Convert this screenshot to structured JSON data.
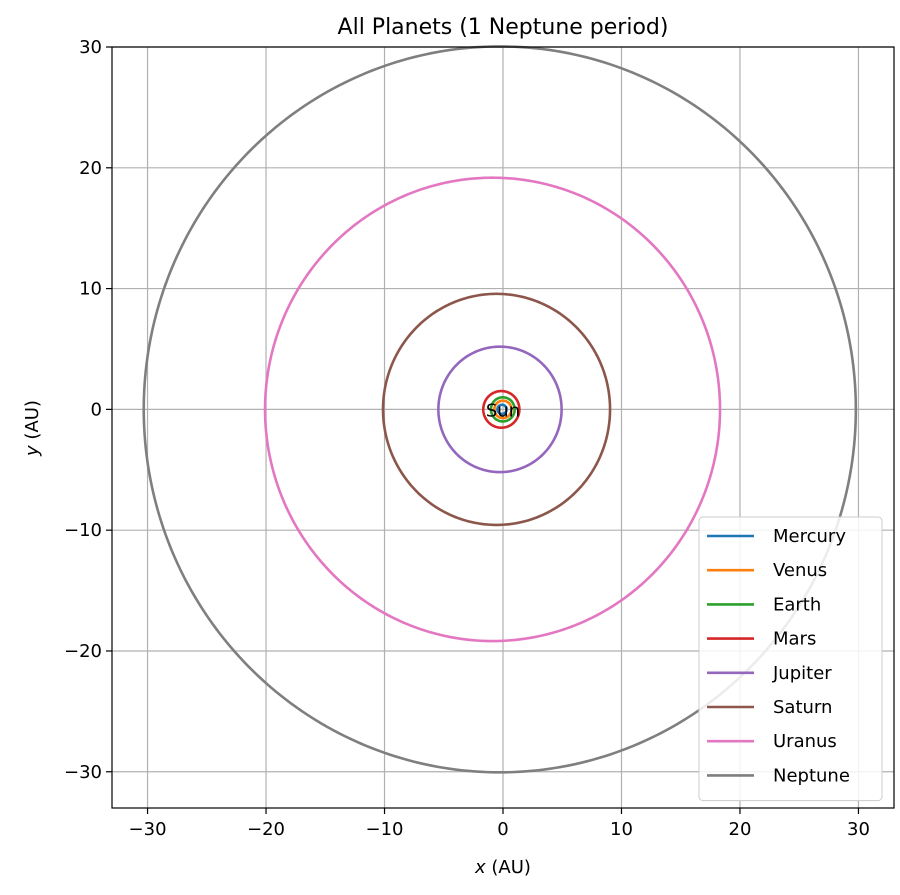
{
  "chart_data": {
    "type": "line",
    "title": "All Planets (1 Neptune period)",
    "xlabel_var": "x",
    "xlabel_unit": " (AU)",
    "ylabel_var": "y",
    "ylabel_unit": " (AU)",
    "xlim": [
      -33,
      33
    ],
    "ylim": [
      -33,
      30
    ],
    "xticks": [
      -30,
      -20,
      -10,
      0,
      10,
      20,
      30
    ],
    "yticks": [
      -30,
      -20,
      -10,
      0,
      10,
      20,
      30
    ],
    "grid": true,
    "legend_position": "lower-right",
    "annotations": [
      {
        "text": "Sun",
        "x": 0,
        "y": 0
      }
    ],
    "series": [
      {
        "name": "Mercury",
        "color": "#1f77b4",
        "a": 0.387,
        "e": 0.206
      },
      {
        "name": "Venus",
        "color": "#ff7f0e",
        "a": 0.723,
        "e": 0.007
      },
      {
        "name": "Earth",
        "color": "#2ca02c",
        "a": 1.0,
        "e": 0.017
      },
      {
        "name": "Mars",
        "color": "#d62728",
        "a": 1.524,
        "e": 0.093
      },
      {
        "name": "Jupiter",
        "color": "#9467bd",
        "a": 5.2,
        "e": 0.049
      },
      {
        "name": "Saturn",
        "color": "#8c564b",
        "a": 9.58,
        "e": 0.057
      },
      {
        "name": "Uranus",
        "color": "#e377c2",
        "a": 19.2,
        "e": 0.046
      },
      {
        "name": "Neptune",
        "color": "#7f7f7f",
        "a": 30.05,
        "e": 0.009
      }
    ]
  }
}
